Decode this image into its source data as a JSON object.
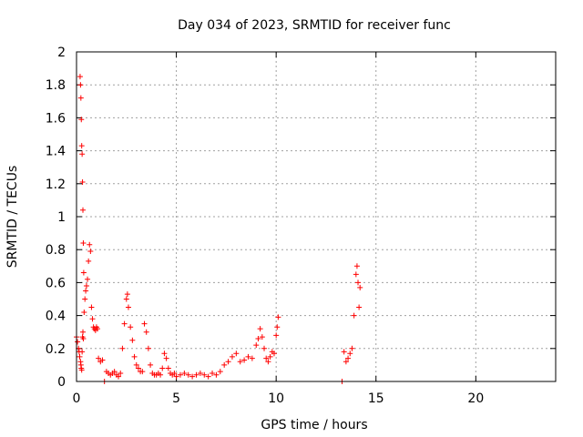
{
  "chart_data": {
    "type": "scatter",
    "title": "Day 034 of 2023, SRMTID for receiver func",
    "xlabel": "GPS time / hours",
    "ylabel": "SRMTID / TECUs",
    "xlim": [
      0,
      24
    ],
    "ylim": [
      0,
      2
    ],
    "xticks": [
      0,
      5,
      10,
      15,
      20
    ],
    "xtick_labels": [
      "0",
      "5",
      "10",
      "15",
      "20"
    ],
    "yticks": [
      0,
      0.2,
      0.4,
      0.6,
      0.8,
      1,
      1.2,
      1.4,
      1.6,
      1.8,
      2
    ],
    "ytick_labels": [
      "0",
      "0.2",
      "0.4",
      "0.6",
      "0.8",
      "1",
      "1.2",
      "1.4",
      "1.6",
      "1.8",
      "2"
    ],
    "grid": true,
    "marker": "+",
    "color": "#ff0000",
    "series": [
      {
        "name": "SRMTID",
        "x": [
          0.0,
          0.05,
          0.1,
          0.13,
          0.16,
          0.2,
          0.22,
          0.24,
          0.26,
          0.28,
          0.3,
          0.32,
          0.34,
          0.38,
          0.42,
          0.46,
          0.5,
          0.55,
          0.6,
          0.65,
          0.7,
          0.75,
          0.8,
          0.85,
          0.9,
          0.95,
          1.0,
          1.05,
          1.1,
          1.2,
          1.3,
          1.4,
          1.5,
          1.6,
          1.7,
          1.8,
          1.9,
          2.0,
          2.1,
          2.2,
          2.3,
          2.4,
          2.5,
          2.55,
          2.6,
          2.7,
          2.8,
          2.9,
          3.0,
          3.1,
          3.2,
          3.3,
          3.4,
          3.5,
          3.6,
          3.7,
          3.8,
          3.9,
          4.0,
          4.1,
          4.2,
          4.3,
          4.4,
          4.5,
          4.6,
          4.7,
          4.8,
          4.9,
          5.0,
          5.2,
          5.4,
          5.6,
          5.8,
          6.0,
          6.2,
          6.4,
          6.6,
          6.8,
          7.0,
          7.2,
          7.4,
          7.6,
          7.8,
          8.0,
          8.2,
          8.4,
          8.6,
          8.8,
          9.0,
          9.1,
          9.2,
          9.3,
          9.4,
          9.5,
          9.6,
          9.7,
          9.8,
          9.9,
          10.0,
          10.05,
          10.1,
          13.3,
          13.4,
          13.5,
          13.6,
          13.7,
          13.8,
          13.9,
          14.0,
          14.05,
          14.1,
          14.15,
          14.2
        ],
        "y": [
          0.27,
          0.24,
          0.2,
          0.18,
          0.15,
          0.12,
          0.1,
          0.08,
          0.07,
          0.18,
          0.27,
          0.3,
          0.26,
          0.42,
          0.5,
          0.55,
          0.58,
          0.62,
          0.73,
          0.83,
          0.79,
          0.45,
          0.38,
          0.33,
          0.32,
          0.31,
          0.33,
          0.32,
          0.14,
          0.12,
          0.13,
          0.0,
          0.06,
          0.05,
          0.04,
          0.05,
          0.06,
          0.04,
          0.03,
          0.05,
          0.2,
          0.35,
          0.5,
          0.53,
          0.45,
          0.33,
          0.25,
          0.15,
          0.1,
          0.08,
          0.06,
          0.06,
          0.35,
          0.3,
          0.2,
          0.1,
          0.05,
          0.04,
          0.04,
          0.05,
          0.04,
          0.08,
          0.17,
          0.14,
          0.08,
          0.05,
          0.04,
          0.05,
          0.03,
          0.04,
          0.05,
          0.04,
          0.03,
          0.04,
          0.05,
          0.04,
          0.03,
          0.05,
          0.04,
          0.06,
          0.1,
          0.12,
          0.15,
          0.17,
          0.12,
          0.13,
          0.15,
          0.14,
          0.22,
          0.26,
          0.32,
          0.27,
          0.2,
          0.14,
          0.12,
          0.15,
          0.18,
          0.17,
          0.28,
          0.33,
          0.39,
          0.0,
          0.18,
          0.12,
          0.14,
          0.17,
          0.2,
          0.4,
          0.65,
          0.7,
          0.6,
          0.45,
          0.57
        ]
      }
    ],
    "outliers": {
      "x": [
        0.18,
        0.2,
        0.22,
        0.24,
        0.26,
        0.28,
        0.3,
        0.32,
        0.34,
        0.36
      ],
      "y": [
        1.85,
        1.8,
        1.72,
        1.59,
        1.43,
        1.38,
        1.21,
        1.04,
        0.84,
        0.66
      ]
    }
  }
}
